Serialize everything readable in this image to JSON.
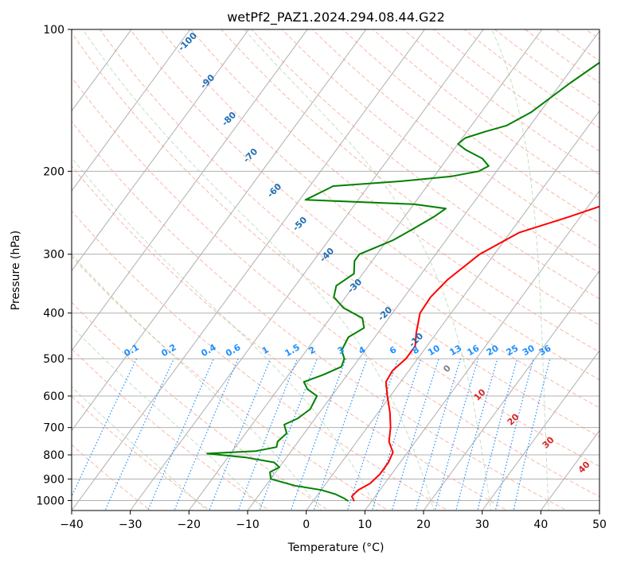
{
  "chart_data": {
    "type": "line",
    "title": "wetPf2_PAZ1.2024.294.08.44.G22",
    "xlabel": "Temperature (°C)",
    "ylabel": "Pressure (hPa)",
    "xlim": [
      -40,
      50
    ],
    "ylim": [
      1050,
      100
    ],
    "y_scale": "log",
    "grid": true,
    "x_ticks": [
      "−40",
      "−30",
      "−20",
      "−10",
      "0",
      "10",
      "20",
      "30",
      "40",
      "50"
    ],
    "x_tick_values": [
      -40,
      -30,
      -20,
      -10,
      0,
      10,
      20,
      30,
      40,
      50
    ],
    "y_ticks": [
      "100",
      "200",
      "300",
      "400",
      "500",
      "600",
      "700",
      "800",
      "900",
      "1000"
    ],
    "y_tick_values": [
      100,
      200,
      300,
      400,
      500,
      600,
      700,
      800,
      900,
      1000
    ],
    "series": [
      {
        "color": "#ff0000",
        "points": [
          {
            "p": 1003,
            "t": 7.0
          },
          {
            "p": 980,
            "t": 6.0
          },
          {
            "p": 950,
            "t": 6.3
          },
          {
            "p": 920,
            "t": 7.5
          },
          {
            "p": 880,
            "t": 8.0
          },
          {
            "p": 830,
            "t": 8.0
          },
          {
            "p": 790,
            "t": 7.5
          },
          {
            "p": 750,
            "t": 5.5
          },
          {
            "p": 700,
            "t": 4.0
          },
          {
            "p": 650,
            "t": 2.0
          },
          {
            "p": 600,
            "t": -0.5
          },
          {
            "p": 560,
            "t": -2.5
          },
          {
            "p": 530,
            "t": -2.8
          },
          {
            "p": 500,
            "t": -2.0
          },
          {
            "p": 470,
            "t": -2.0
          },
          {
            "p": 440,
            "t": -3.5
          },
          {
            "p": 400,
            "t": -5.3
          },
          {
            "p": 370,
            "t": -5.5
          },
          {
            "p": 340,
            "t": -4.8
          },
          {
            "p": 300,
            "t": -2.5
          },
          {
            "p": 270,
            "t": 1.5
          },
          {
            "p": 250,
            "t": 8.0
          },
          {
            "p": 230,
            "t": 14.5
          },
          {
            "p": 215,
            "t": 18.0
          },
          {
            "p": 200,
            "t": 19.5
          },
          {
            "p": 180,
            "t": 20.5
          },
          {
            "p": 165,
            "t": 21.5
          },
          {
            "p": 150,
            "t": 22.0
          },
          {
            "p": 130,
            "t": 24.5
          },
          {
            "p": 115,
            "t": 28.0
          },
          {
            "p": 100,
            "t": 33.0
          }
        ]
      },
      {
        "color": "#008000",
        "points": [
          {
            "p": 1003,
            "t": 6.0
          },
          {
            "p": 990,
            "t": 5.0
          },
          {
            "p": 970,
            "t": 3.0
          },
          {
            "p": 950,
            "t": 0.0
          },
          {
            "p": 930,
            "t": -5.0
          },
          {
            "p": 900,
            "t": -10.0
          },
          {
            "p": 870,
            "t": -11.0
          },
          {
            "p": 850,
            "t": -10.0
          },
          {
            "p": 830,
            "t": -11.5
          },
          {
            "p": 810,
            "t": -17.0
          },
          {
            "p": 795,
            "t": -24.0
          },
          {
            "p": 785,
            "t": -16.0
          },
          {
            "p": 770,
            "t": -13.0
          },
          {
            "p": 750,
            "t": -13.5
          },
          {
            "p": 720,
            "t": -13.0
          },
          {
            "p": 690,
            "t": -14.5
          },
          {
            "p": 670,
            "t": -13.0
          },
          {
            "p": 640,
            "t": -12.0
          },
          {
            "p": 600,
            "t": -12.5
          },
          {
            "p": 580,
            "t": -15.0
          },
          {
            "p": 560,
            "t": -16.5
          },
          {
            "p": 540,
            "t": -14.0
          },
          {
            "p": 520,
            "t": -12.0
          },
          {
            "p": 500,
            "t": -12.5
          },
          {
            "p": 480,
            "t": -14.0
          },
          {
            "p": 450,
            "t": -14.5
          },
          {
            "p": 430,
            "t": -13.0
          },
          {
            "p": 410,
            "t": -14.5
          },
          {
            "p": 390,
            "t": -19.0
          },
          {
            "p": 370,
            "t": -22.0
          },
          {
            "p": 350,
            "t": -23.0
          },
          {
            "p": 330,
            "t": -21.5
          },
          {
            "p": 310,
            "t": -23.0
          },
          {
            "p": 300,
            "t": -23.0
          },
          {
            "p": 280,
            "t": -19.0
          },
          {
            "p": 265,
            "t": -17.0
          },
          {
            "p": 250,
            "t": -15.0
          },
          {
            "p": 240,
            "t": -14.0
          },
          {
            "p": 235,
            "t": -20.0
          },
          {
            "p": 230,
            "t": -39.0
          },
          {
            "p": 220,
            "t": -37.0
          },
          {
            "p": 215,
            "t": -36.0
          },
          {
            "p": 210,
            "t": -25.0
          },
          {
            "p": 205,
            "t": -17.0
          },
          {
            "p": 200,
            "t": -13.0
          },
          {
            "p": 195,
            "t": -12.0
          },
          {
            "p": 188,
            "t": -14.0
          },
          {
            "p": 180,
            "t": -18.0
          },
          {
            "p": 175,
            "t": -20.0
          },
          {
            "p": 170,
            "t": -19.5
          },
          {
            "p": 165,
            "t": -17.0
          },
          {
            "p": 160,
            "t": -14.0
          },
          {
            "p": 150,
            "t": -11.5
          },
          {
            "p": 130,
            "t": -8.5
          },
          {
            "p": 115,
            "t": -5.5
          },
          {
            "p": 100,
            "t": -2.5
          }
        ]
      }
    ],
    "dry_adiabat_labels": [
      "-100",
      "-90",
      "-80",
      "-70",
      "-60",
      "-50",
      "-40",
      "-30",
      "-20",
      "-10"
    ],
    "mixing_ratio_labels": [
      "0.1",
      "0.2",
      "0.4",
      "0.6",
      "1",
      "1.5",
      "2",
      "3",
      "4",
      "6",
      "8",
      "10",
      "13",
      "16",
      "20",
      "25",
      "30",
      "36"
    ],
    "moist_adiabat_labels": [
      "0",
      "10",
      "20",
      "30",
      "40"
    ]
  }
}
